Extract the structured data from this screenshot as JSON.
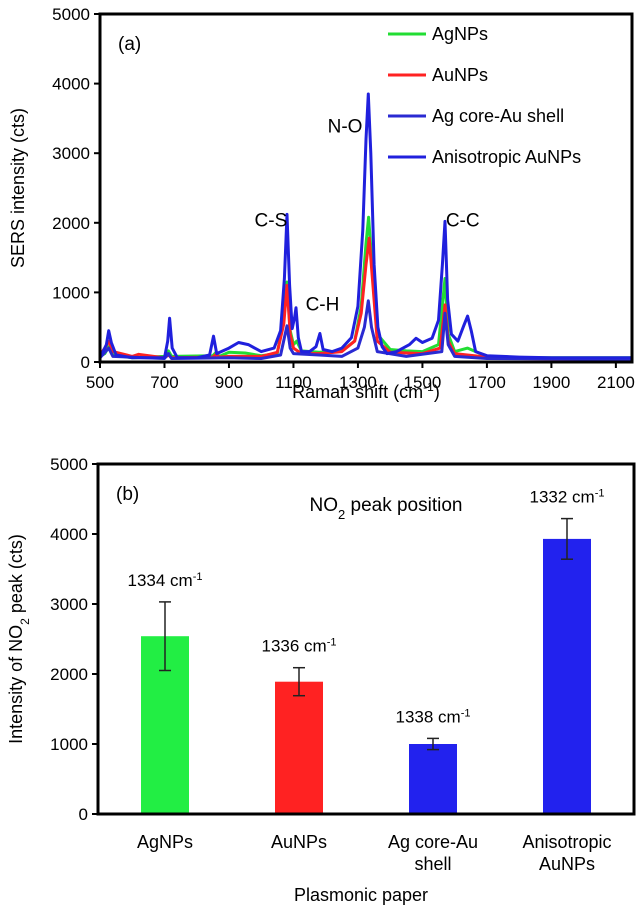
{
  "chart_data": [
    {
      "panel": "(a)",
      "type": "line",
      "xlabel": "Raman shift (cm-1)",
      "xlabel_main": "Raman shift (cm",
      "xlabel_sup": "-1",
      "xlabel_end": ")",
      "ylabel": "SERS intensity (cts)",
      "xlim": [
        500,
        2150
      ],
      "ylim": [
        0,
        5000
      ],
      "xticks": [
        500,
        700,
        900,
        1100,
        1300,
        1500,
        1700,
        1900,
        2100
      ],
      "yticks": [
        0,
        1000,
        2000,
        3000,
        4000,
        5000
      ],
      "legend_position": "top-right",
      "annotations": [
        {
          "text": "C-S",
          "x": 1030,
          "y": 1950
        },
        {
          "text": "C-H",
          "x": 1190,
          "y": 740
        },
        {
          "text": "N-O",
          "x": 1260,
          "y": 3300
        },
        {
          "text": "C-C",
          "x": 1625,
          "y": 1950
        }
      ],
      "series": [
        {
          "name": "AgNPs",
          "color": "#22dd33",
          "points": [
            [
              500,
              80
            ],
            [
              515,
              120
            ],
            [
              527,
              220
            ],
            [
              540,
              100
            ],
            [
              600,
              60
            ],
            [
              700,
              80
            ],
            [
              712,
              160
            ],
            [
              722,
              80
            ],
            [
              850,
              90
            ],
            [
              860,
              140
            ],
            [
              870,
              80
            ],
            [
              900,
              140
            ],
            [
              950,
              130
            ],
            [
              1000,
              90
            ],
            [
              1050,
              120
            ],
            [
              1070,
              650
            ],
            [
              1080,
              1150
            ],
            [
              1090,
              450
            ],
            [
              1100,
              250
            ],
            [
              1110,
              300
            ],
            [
              1125,
              160
            ],
            [
              1180,
              140
            ],
            [
              1250,
              160
            ],
            [
              1290,
              300
            ],
            [
              1310,
              800
            ],
            [
              1325,
              1700
            ],
            [
              1333,
              2080
            ],
            [
              1342,
              1500
            ],
            [
              1360,
              400
            ],
            [
              1400,
              180
            ],
            [
              1450,
              160
            ],
            [
              1500,
              150
            ],
            [
              1550,
              250
            ],
            [
              1570,
              1200
            ],
            [
              1580,
              400
            ],
            [
              1600,
              150
            ],
            [
              1640,
              200
            ],
            [
              1700,
              80
            ],
            [
              1800,
              60
            ],
            [
              2150,
              60
            ]
          ]
        },
        {
          "name": "AuNPs",
          "color": "#ff2222",
          "points": [
            [
              500,
              100
            ],
            [
              515,
              200
            ],
            [
              527,
              300
            ],
            [
              540,
              150
            ],
            [
              600,
              80
            ],
            [
              620,
              110
            ],
            [
              700,
              60
            ],
            [
              712,
              100
            ],
            [
              722,
              60
            ],
            [
              850,
              70
            ],
            [
              860,
              110
            ],
            [
              870,
              70
            ],
            [
              900,
              80
            ],
            [
              1000,
              80
            ],
            [
              1050,
              140
            ],
            [
              1070,
              550
            ],
            [
              1080,
              1100
            ],
            [
              1090,
              400
            ],
            [
              1100,
              200
            ],
            [
              1125,
              120
            ],
            [
              1180,
              120
            ],
            [
              1250,
              150
            ],
            [
              1290,
              300
            ],
            [
              1310,
              700
            ],
            [
              1325,
              1400
            ],
            [
              1335,
              1780
            ],
            [
              1345,
              1200
            ],
            [
              1360,
              300
            ],
            [
              1400,
              140
            ],
            [
              1500,
              120
            ],
            [
              1555,
              200
            ],
            [
              1570,
              820
            ],
            [
              1580,
              300
            ],
            [
              1600,
              120
            ],
            [
              1700,
              70
            ],
            [
              1800,
              50
            ],
            [
              2150,
              40
            ]
          ]
        },
        {
          "name": "Ag core-Au shell",
          "color": "#2a2ad2",
          "points": [
            [
              500,
              60
            ],
            [
              527,
              200
            ],
            [
              540,
              80
            ],
            [
              700,
              50
            ],
            [
              712,
              120
            ],
            [
              722,
              50
            ],
            [
              900,
              60
            ],
            [
              1000,
              50
            ],
            [
              1060,
              100
            ],
            [
              1080,
              520
            ],
            [
              1090,
              200
            ],
            [
              1100,
              120
            ],
            [
              1180,
              100
            ],
            [
              1250,
              80
            ],
            [
              1300,
              200
            ],
            [
              1320,
              500
            ],
            [
              1332,
              880
            ],
            [
              1342,
              500
            ],
            [
              1360,
              150
            ],
            [
              1450,
              80
            ],
            [
              1560,
              150
            ],
            [
              1570,
              700
            ],
            [
              1580,
              250
            ],
            [
              1600,
              80
            ],
            [
              1700,
              50
            ],
            [
              2150,
              40
            ]
          ]
        },
        {
          "name": "Anisotropic AuNPs",
          "color": "#2020dd",
          "points": [
            [
              500,
              60
            ],
            [
              520,
              250
            ],
            [
              527,
              450
            ],
            [
              535,
              280
            ],
            [
              550,
              100
            ],
            [
              600,
              60
            ],
            [
              700,
              60
            ],
            [
              710,
              300
            ],
            [
              716,
              630
            ],
            [
              724,
              200
            ],
            [
              740,
              60
            ],
            [
              800,
              60
            ],
            [
              840,
              100
            ],
            [
              852,
              370
            ],
            [
              862,
              120
            ],
            [
              900,
              200
            ],
            [
              930,
              280
            ],
            [
              960,
              250
            ],
            [
              1000,
              150
            ],
            [
              1040,
              200
            ],
            [
              1060,
              450
            ],
            [
              1072,
              1200
            ],
            [
              1080,
              2120
            ],
            [
              1088,
              1100
            ],
            [
              1096,
              480
            ],
            [
              1104,
              650
            ],
            [
              1108,
              780
            ],
            [
              1115,
              350
            ],
            [
              1125,
              150
            ],
            [
              1150,
              150
            ],
            [
              1170,
              220
            ],
            [
              1182,
              410
            ],
            [
              1192,
              180
            ],
            [
              1220,
              150
            ],
            [
              1250,
              200
            ],
            [
              1280,
              350
            ],
            [
              1300,
              800
            ],
            [
              1315,
              1900
            ],
            [
              1325,
              3200
            ],
            [
              1332,
              3850
            ],
            [
              1340,
              3000
            ],
            [
              1350,
              1400
            ],
            [
              1362,
              500
            ],
            [
              1375,
              220
            ],
            [
              1390,
              120
            ],
            [
              1420,
              150
            ],
            [
              1460,
              250
            ],
            [
              1480,
              340
            ],
            [
              1500,
              280
            ],
            [
              1530,
              340
            ],
            [
              1550,
              600
            ],
            [
              1562,
              1400
            ],
            [
              1570,
              2020
            ],
            [
              1578,
              900
            ],
            [
              1590,
              400
            ],
            [
              1610,
              300
            ],
            [
              1628,
              520
            ],
            [
              1640,
              660
            ],
            [
              1652,
              440
            ],
            [
              1665,
              150
            ],
            [
              1700,
              90
            ],
            [
              1800,
              70
            ],
            [
              1900,
              60
            ],
            [
              2000,
              60
            ],
            [
              2150,
              60
            ]
          ]
        }
      ]
    },
    {
      "panel": "(b)",
      "type": "bar",
      "title": "NO2 peak position",
      "title_main": "NO",
      "title_sub": "2",
      "title_end": " peak position",
      "xlabel": "Plasmonic paper",
      "ylabel": "Intensity of NO2 peak (cts)",
      "ylabel_main": "Intensity  of NO",
      "ylabel_sub": "2",
      "ylabel_end": " peak (cts)",
      "ylim": [
        0,
        5000
      ],
      "yticks": [
        0,
        1000,
        2000,
        3000,
        4000,
        5000
      ],
      "categories": [
        {
          "line1": "AgNPs",
          "line2": ""
        },
        {
          "line1": "AuNPs",
          "line2": ""
        },
        {
          "line1": "Ag core-Au",
          "line2": "shell"
        },
        {
          "line1": "Anisotropic",
          "line2": "AuNPs"
        }
      ],
      "values": [
        2540,
        1890,
        1000,
        3930
      ],
      "errors": [
        490,
        200,
        80,
        290
      ],
      "colors": [
        "#22ee44",
        "#ff2222",
        "#2222ee",
        "#2222ee"
      ],
      "labels": [
        "1334 cm",
        "1336 cm",
        "1338 cm",
        "1332 cm"
      ],
      "label_sup": "-1"
    }
  ]
}
